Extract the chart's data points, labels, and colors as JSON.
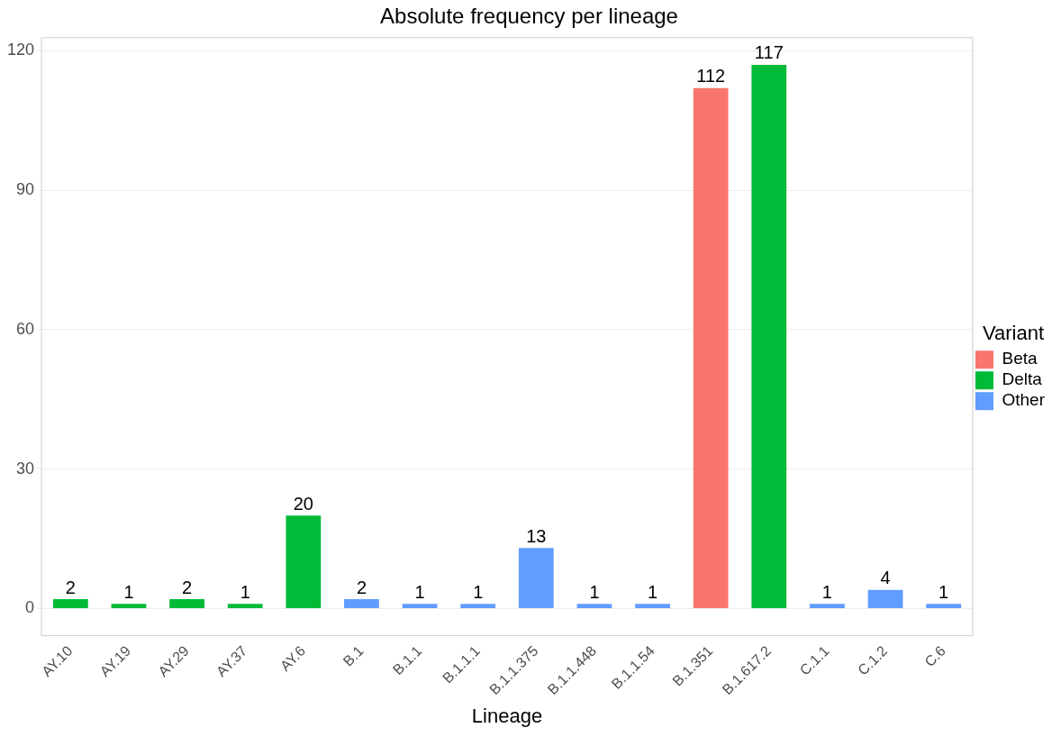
{
  "chart_data": {
    "type": "bar",
    "title": "Absolute frequency per lineage",
    "xlabel": "Lineage",
    "legend_title": "Variant",
    "categories": [
      "AY.10",
      "AY.19",
      "AY.29",
      "AY.37",
      "AY.6",
      "B.1",
      "B.1.1",
      "B.1.1.1",
      "B.1.1.375",
      "B.1.1.448",
      "B.1.1.54",
      "B.1.351",
      "B.1.617.2",
      "C.1.1",
      "C.1.2",
      "C.6"
    ],
    "series": [
      {
        "name": "Beta",
        "color": "#f8766d",
        "values": [
          null,
          null,
          null,
          null,
          null,
          null,
          null,
          null,
          null,
          null,
          null,
          112,
          null,
          null,
          null,
          null
        ]
      },
      {
        "name": "Delta",
        "color": "#00ba38",
        "values": [
          2,
          1,
          2,
          1,
          20,
          null,
          null,
          null,
          null,
          null,
          null,
          null,
          117,
          null,
          null,
          null
        ]
      },
      {
        "name": "Other",
        "color": "#619cff",
        "values": [
          null,
          null,
          null,
          null,
          null,
          2,
          1,
          1,
          13,
          1,
          1,
          null,
          null,
          1,
          4,
          1
        ]
      }
    ],
    "ylim": [
      -5.85,
      122.85
    ],
    "yticks": [
      0,
      30,
      60,
      90,
      120
    ],
    "grid": "y",
    "legend": "right",
    "data_labels": true
  }
}
